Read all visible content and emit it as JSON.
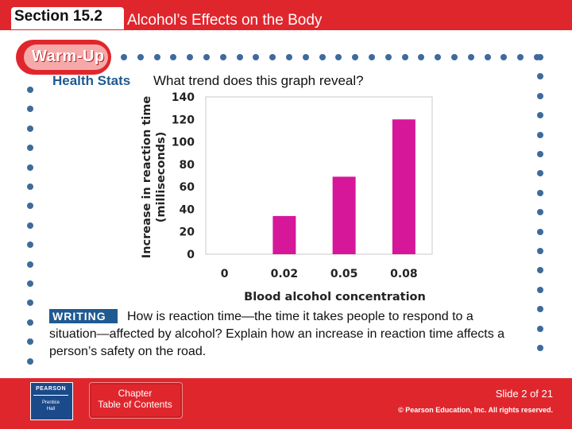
{
  "header": {
    "section": "Section 15.2",
    "title": "Alcohol’s Effects on the Body"
  },
  "warmup": {
    "label": "Warm-Up",
    "health_stats": "Health Stats",
    "question": "What trend does this graph reveal?"
  },
  "writing": {
    "badge": "WRITING",
    "text": "How is reaction time—the time it takes people to respond to a situation—affected by alcohol? Explain how an increase in reaction time affects a person’s safety on the road."
  },
  "footer": {
    "publisher": "PEARSON",
    "imprint": "Prentice\nHall",
    "toc_label": "Chapter\nTable of Contents",
    "slide_number": "Slide 2 of 21",
    "copyright": "© Pearson Education, Inc. All rights reserved."
  },
  "colors": {
    "header": "#e0262d",
    "bar": "#d6179a",
    "accent_blue": "#1f5a91",
    "bullet": "#3e6a9c"
  },
  "chart_data": {
    "type": "bar",
    "categories": [
      "0",
      "0.02",
      "0.05",
      "0.08"
    ],
    "values": [
      0,
      34,
      69,
      120
    ],
    "xlabel": "Blood alcohol concentration",
    "ylabel": "Increase in reaction time (milliseconds)",
    "ylim": [
      0,
      140
    ],
    "yticks": [
      0,
      20,
      40,
      60,
      80,
      100,
      120,
      140
    ],
    "grid": false
  }
}
